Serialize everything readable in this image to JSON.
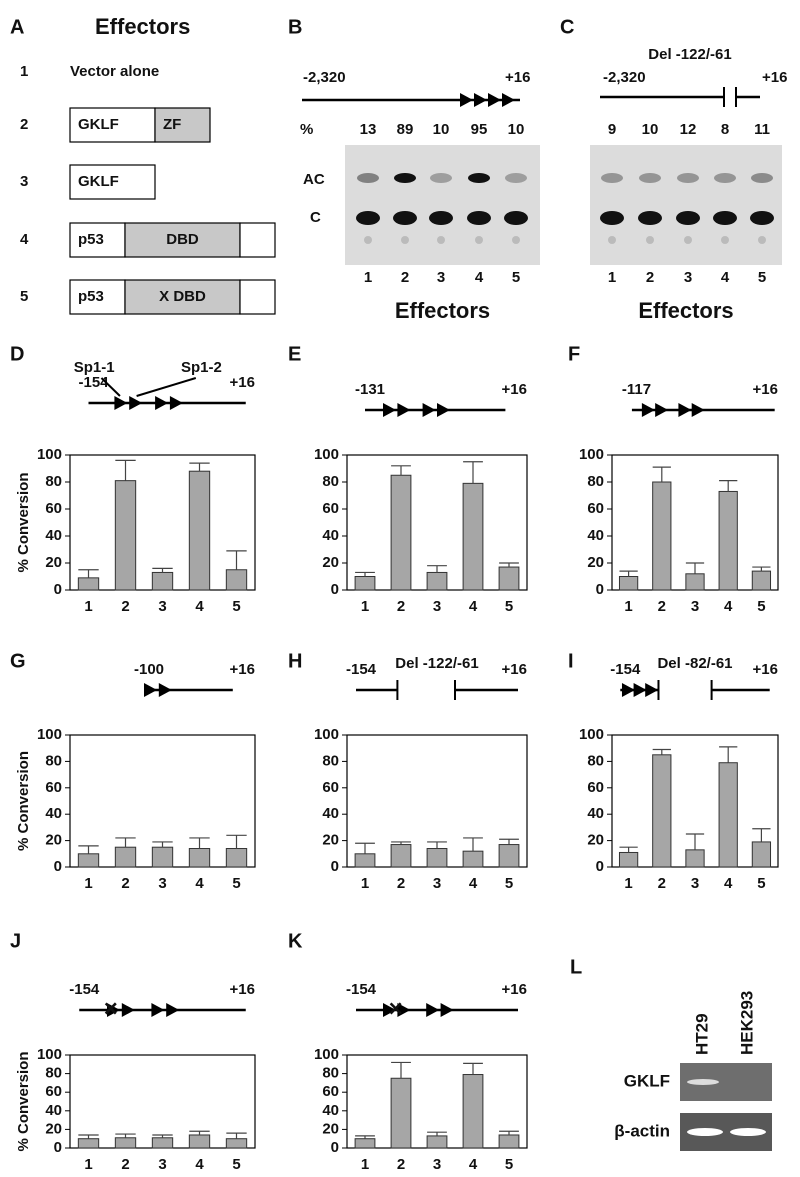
{
  "panels": {
    "A": {
      "letter": "A",
      "title": "Effectors",
      "rows": [
        {
          "n": "1",
          "label": "Vector alone"
        },
        {
          "n": "2",
          "boxes": [
            "GKLF",
            "ZF"
          ]
        },
        {
          "n": "3",
          "boxes": [
            "GKLF"
          ]
        },
        {
          "n": "4",
          "boxes": [
            "p53",
            "DBD"
          ]
        },
        {
          "n": "5",
          "boxes": [
            "p53",
            "X DBD"
          ]
        }
      ]
    },
    "B": {
      "letter": "B",
      "start": "-2,320",
      "end": "+16",
      "percent_label": "%",
      "percents": [
        13,
        89,
        10,
        95,
        10
      ],
      "bands": [
        "AC",
        "C"
      ],
      "lanes": [
        "1",
        "2",
        "3",
        "4",
        "5"
      ],
      "xlabel": "Effectors"
    },
    "C": {
      "letter": "C",
      "note": "Del -122/-61",
      "start": "-2,320",
      "end": "+16",
      "percents": [
        9,
        10,
        12,
        8,
        11
      ],
      "lanes": [
        "1",
        "2",
        "3",
        "4",
        "5"
      ],
      "xlabel": "Effectors"
    },
    "L": {
      "letter": "L",
      "lanes": [
        "HT29",
        "HEK293"
      ],
      "rows": [
        "GKLF",
        "β-actin"
      ]
    }
  },
  "chart_data": [
    {
      "type": "bar",
      "title": "D",
      "promoter_start": "-154",
      "promoter_end": "+16",
      "sites": [
        "Sp1-1",
        "Sp1-2"
      ],
      "ylabel": "% Conversion",
      "categories": [
        "1",
        "2",
        "3",
        "4",
        "5"
      ],
      "values": [
        9,
        81,
        13,
        88,
        15
      ],
      "errors": [
        6,
        15,
        3,
        6,
        14
      ],
      "color": "#a6a6a6",
      "ylim": [
        0,
        100
      ],
      "yticks": [
        0,
        20,
        40,
        60,
        80,
        100
      ]
    },
    {
      "type": "bar",
      "title": "E",
      "promoter_start": "-131",
      "promoter_end": "+16",
      "categories": [
        "1",
        "2",
        "3",
        "4",
        "5"
      ],
      "values": [
        10,
        85,
        13,
        79,
        17
      ],
      "errors": [
        3,
        7,
        5,
        16,
        3
      ],
      "color": "#a6a6a6",
      "ylim": [
        0,
        100
      ],
      "yticks": [
        0,
        20,
        40,
        60,
        80,
        100
      ]
    },
    {
      "type": "bar",
      "title": "F",
      "promoter_start": "-117",
      "promoter_end": "+16",
      "categories": [
        "1",
        "2",
        "3",
        "4",
        "5"
      ],
      "values": [
        10,
        80,
        12,
        73,
        14
      ],
      "errors": [
        4,
        11,
        8,
        8,
        3
      ],
      "color": "#a6a6a6",
      "ylim": [
        0,
        100
      ],
      "yticks": [
        0,
        20,
        40,
        60,
        80,
        100
      ]
    },
    {
      "type": "bar",
      "title": "G",
      "promoter_start": "-100",
      "promoter_end": "+16",
      "ylabel": "% Conversion",
      "categories": [
        "1",
        "2",
        "3",
        "4",
        "5"
      ],
      "values": [
        10,
        15,
        15,
        14,
        14
      ],
      "errors": [
        6,
        7,
        4,
        8,
        10
      ],
      "color": "#a6a6a6",
      "ylim": [
        0,
        100
      ],
      "yticks": [
        0,
        20,
        40,
        60,
        80,
        100
      ]
    },
    {
      "type": "bar",
      "title": "H",
      "promoter_start": "-154",
      "promoter_end": "+16",
      "note": "Del -122/-61",
      "categories": [
        "1",
        "2",
        "3",
        "4",
        "5"
      ],
      "values": [
        10,
        17,
        14,
        12,
        17
      ],
      "errors": [
        8,
        2,
        5,
        10,
        4
      ],
      "color": "#a6a6a6",
      "ylim": [
        0,
        100
      ],
      "yticks": [
        0,
        20,
        40,
        60,
        80,
        100
      ]
    },
    {
      "type": "bar",
      "title": "I",
      "promoter_start": "-154",
      "promoter_end": "+16",
      "note": "Del -82/-61",
      "categories": [
        "1",
        "2",
        "3",
        "4",
        "5"
      ],
      "values": [
        11,
        85,
        13,
        79,
        19
      ],
      "errors": [
        4,
        4,
        12,
        12,
        10
      ],
      "color": "#a6a6a6",
      "ylim": [
        0,
        100
      ],
      "yticks": [
        0,
        20,
        40,
        60,
        80,
        100
      ]
    },
    {
      "type": "bar",
      "title": "J",
      "promoter_start": "-154",
      "promoter_end": "+16",
      "ylabel": "% Conversion",
      "categories": [
        "1",
        "2",
        "3",
        "4",
        "5"
      ],
      "values": [
        10,
        11,
        11,
        14,
        10
      ],
      "errors": [
        4,
        4,
        3,
        4,
        6
      ],
      "color": "#a6a6a6",
      "ylim": [
        0,
        100
      ],
      "yticks": [
        0,
        20,
        40,
        60,
        80,
        100
      ]
    },
    {
      "type": "bar",
      "title": "K",
      "promoter_start": "-154",
      "promoter_end": "+16",
      "categories": [
        "1",
        "2",
        "3",
        "4",
        "5"
      ],
      "values": [
        10,
        75,
        13,
        79,
        14
      ],
      "errors": [
        3,
        17,
        4,
        12,
        4
      ],
      "color": "#a6a6a6",
      "ylim": [
        0,
        100
      ],
      "yticks": [
        0,
        20,
        40,
        60,
        80,
        100
      ]
    }
  ]
}
